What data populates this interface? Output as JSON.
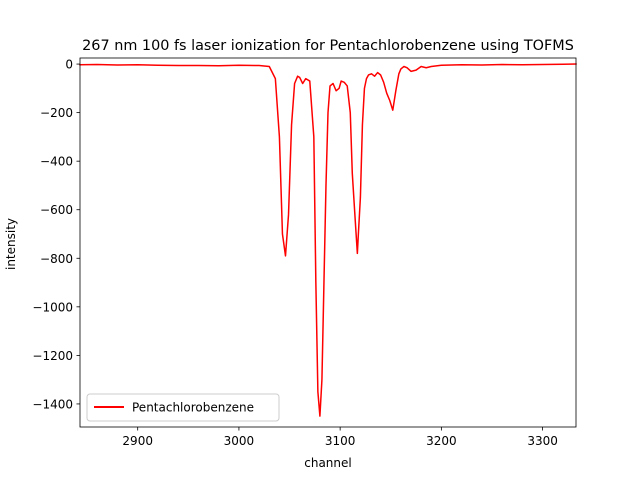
{
  "chart_data": {
    "type": "line",
    "title": "267 nm 100 fs laser ionization for Pentachlorobenzene using TOFMS",
    "xlabel": "channel",
    "ylabel": "intensity",
    "xlim": [
      2843,
      3333
    ],
    "ylim": [
      -1495,
      25
    ],
    "x_ticks": [
      2900,
      3000,
      3100,
      3200,
      3300
    ],
    "x_tick_labels": [
      "2900",
      "3000",
      "3100",
      "3200",
      "3300"
    ],
    "y_ticks": [
      0,
      -200,
      -400,
      -600,
      -800,
      -1000,
      -1200,
      -1400
    ],
    "y_tick_labels": [
      "0",
      "−200",
      "−400",
      "−600",
      "−800",
      "−1000",
      "−1200",
      "−1400"
    ],
    "grid": false,
    "legend_position": "lower-left",
    "series": [
      {
        "name": "Pentachlorobenzene",
        "color": "#ff0000",
        "x": [
          2843,
          2860,
          2880,
          2900,
          2920,
          2940,
          2960,
          2980,
          3000,
          3020,
          3030,
          3036,
          3040,
          3043,
          3046,
          3049,
          3052,
          3055,
          3058,
          3060,
          3063,
          3066,
          3070,
          3074,
          3076,
          3078,
          3080,
          3082,
          3084,
          3086,
          3088,
          3090,
          3093,
          3096,
          3099,
          3101,
          3104,
          3107,
          3110,
          3112,
          3115,
          3117,
          3118,
          3120,
          3122,
          3124,
          3126,
          3128,
          3131,
          3134,
          3137,
          3140,
          3143,
          3146,
          3149,
          3152,
          3155,
          3158,
          3160,
          3163,
          3166,
          3170,
          3175,
          3180,
          3185,
          3190,
          3200,
          3220,
          3240,
          3260,
          3280,
          3300,
          3320,
          3333
        ],
        "y": [
          -3,
          -2,
          -4,
          -3,
          -5,
          -6,
          -6,
          -7,
          -5,
          -6,
          -10,
          -60,
          -300,
          -700,
          -790,
          -620,
          -250,
          -80,
          -50,
          -55,
          -80,
          -60,
          -70,
          -300,
          -900,
          -1350,
          -1450,
          -1300,
          -900,
          -500,
          -200,
          -90,
          -80,
          -110,
          -100,
          -70,
          -75,
          -90,
          -200,
          -450,
          -650,
          -780,
          -700,
          -550,
          -250,
          -100,
          -60,
          -45,
          -40,
          -50,
          -35,
          -45,
          -75,
          -120,
          -150,
          -190,
          -110,
          -40,
          -20,
          -10,
          -15,
          -30,
          -25,
          -10,
          -15,
          -10,
          -5,
          -3,
          -4,
          -2,
          -3,
          -2,
          -1,
          0
        ]
      }
    ]
  }
}
